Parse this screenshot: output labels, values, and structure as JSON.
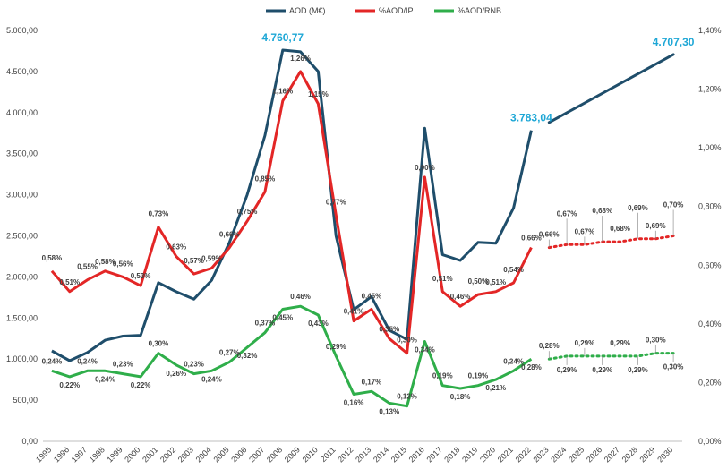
{
  "chart_data": {
    "type": "line",
    "legend": {
      "position": "top",
      "entries": [
        "AOD (M€)",
        "%AOD/IP",
        "%AOD/RNB"
      ]
    },
    "categories": [
      "1995",
      "1996",
      "1997",
      "1998",
      "1999",
      "2000",
      "2001",
      "2002",
      "2003",
      "2004",
      "2005",
      "2006",
      "2007",
      "2008",
      "2009",
      "2010",
      "2011",
      "2012",
      "2013",
      "2014",
      "2015",
      "2016",
      "2017",
      "2018",
      "2019",
      "2020",
      "2021",
      "2022",
      "2023",
      "2024",
      "2025",
      "2026",
      "2027",
      "2028",
      "2029",
      "2030"
    ],
    "y_left": {
      "range": [
        0,
        5000
      ],
      "ticks": [
        "0,00",
        "500,00",
        "1.000,00",
        "1.500,00",
        "2.000,00",
        "2.500,00",
        "3.000,00",
        "3.500,00",
        "4.000,00",
        "4.500,00",
        "5.000,00"
      ]
    },
    "y_right": {
      "range": [
        0,
        1.4
      ],
      "ticks": [
        "0,00%",
        "0,20%",
        "0,40%",
        "0,60%",
        "0,80%",
        "1,00%",
        "1,20%",
        "1,40%"
      ]
    },
    "colors": {
      "aod": "#1f4e6b",
      "ip": "#e32626",
      "rnb": "#2fae4a",
      "highlight": "#1ea7d6",
      "grid": "#dcdcdc"
    },
    "series": [
      {
        "name": "AOD (M€)",
        "axis": "left",
        "values": [
          1100,
          980,
          1080,
          1230,
          1280,
          1290,
          1930,
          1820,
          1730,
          1960,
          2420,
          3000,
          3720,
          4760.77,
          4740,
          4500,
          2500,
          1600,
          1760,
          1350,
          1240,
          3810,
          2270,
          2200,
          2420,
          2410,
          2840,
          3783.04,
          3880,
          null,
          null,
          null,
          null,
          null,
          null,
          4707.3
        ],
        "labels": [
          {
            "i": 13,
            "text": "4.760,77"
          },
          {
            "i": 27,
            "text": "3.783,04"
          },
          {
            "i": 35,
            "text": "4.707,30"
          }
        ]
      },
      {
        "name": "%AOD/IP",
        "axis": "right",
        "values": [
          0.58,
          0.51,
          0.55,
          0.58,
          0.56,
          0.53,
          0.73,
          0.63,
          0.57,
          0.59,
          0.66,
          0.75,
          0.85,
          1.16,
          1.26,
          1.15,
          0.77,
          0.41,
          0.45,
          0.35,
          0.3,
          0.9,
          0.51,
          0.46,
          0.5,
          0.51,
          0.54,
          0.66,
          0.66,
          0.67,
          0.67,
          0.68,
          0.68,
          0.69,
          0.69,
          0.7
        ],
        "labels": [
          "0,58%",
          "0,51%",
          "0,55%",
          "0,58%",
          "0,56%",
          "0,53%",
          "0,73%",
          "0,63%",
          "0,57%",
          "0,59%",
          "0,66%",
          "0,75%",
          "0,85%",
          "1,16%",
          "1,26%",
          "1,15%",
          "0,77%",
          "0,41%",
          "0,45%",
          "0,35%",
          "0,30%",
          "0,90%",
          "0,51%",
          "0,46%",
          "0,50%",
          "0,51%",
          "0,54%",
          "0,66%",
          "0,66%",
          "0,67%",
          "0,67%",
          "0,68%",
          "0,68%",
          "0,69%",
          "0,69%",
          "0,70%"
        ]
      },
      {
        "name": "%AOD/RNB",
        "axis": "right",
        "values": [
          0.24,
          0.22,
          0.24,
          0.24,
          0.23,
          0.22,
          0.3,
          0.26,
          0.23,
          0.24,
          0.27,
          0.32,
          0.37,
          0.45,
          0.46,
          0.43,
          0.29,
          0.16,
          0.17,
          0.13,
          0.12,
          0.34,
          0.19,
          0.18,
          0.19,
          0.21,
          0.24,
          0.28,
          0.28,
          0.29,
          0.29,
          0.29,
          0.29,
          0.29,
          0.3,
          0.3
        ],
        "labels": [
          "0,24%",
          "0,22%",
          "0,24%",
          "0,24%",
          "0,23%",
          "0,22%",
          "0,30%",
          "0,26%",
          "0,23%",
          "0,24%",
          "0,27%",
          "0,32%",
          "0,37%",
          "0,45%",
          "0,46%",
          "0,43%",
          "0,29%",
          "0,16%",
          "0,17%",
          "0,13%",
          "0,12%",
          "0,34%",
          "0,19%",
          "0,18%",
          "0,19%",
          "0,21%",
          "0,24%",
          "0,28%",
          "0,28%",
          "0,29%",
          "0,29%",
          "0,29%",
          "0,29%",
          "0,29%",
          "0,30%",
          "0,30%"
        ]
      }
    ]
  }
}
